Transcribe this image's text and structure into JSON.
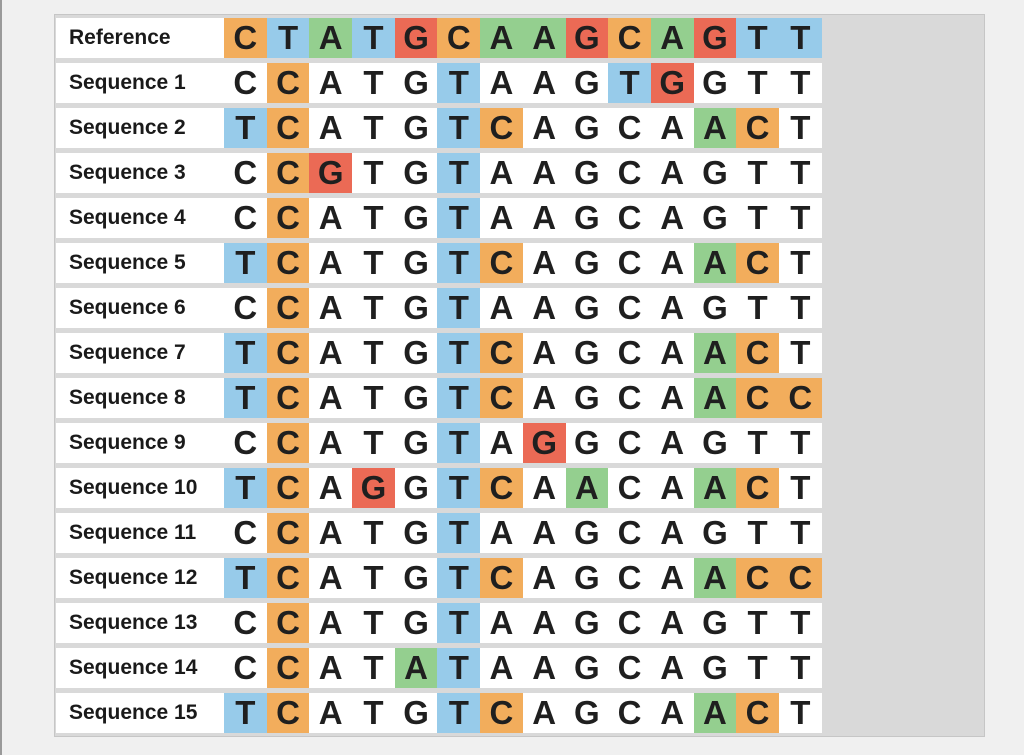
{
  "colors": {
    "A": "#94cf8f",
    "C": "#f2ad5c",
    "G": "#eb6a55",
    "T": "#97cbea"
  },
  "rows": [
    {
      "label": "Reference",
      "seq": "CTATGCAAGCAGTT",
      "hl": [
        1,
        1,
        1,
        1,
        1,
        1,
        1,
        1,
        1,
        1,
        1,
        1,
        1,
        1
      ]
    },
    {
      "label": "Sequence 1",
      "seq": "CCATGTAAGTGGTT",
      "hl": [
        0,
        1,
        0,
        0,
        0,
        1,
        0,
        0,
        0,
        1,
        1,
        0,
        0,
        0
      ]
    },
    {
      "label": "Sequence 2",
      "seq": "TCATGTCAGCAACT",
      "hl": [
        1,
        1,
        0,
        0,
        0,
        1,
        1,
        0,
        0,
        0,
        0,
        1,
        1,
        0
      ]
    },
    {
      "label": "Sequence 3",
      "seq": "CCGTGTAAGCAGTT",
      "hl": [
        0,
        1,
        1,
        0,
        0,
        1,
        0,
        0,
        0,
        0,
        0,
        0,
        0,
        0
      ]
    },
    {
      "label": "Sequence 4",
      "seq": "CCATGTAAGCAGTT",
      "hl": [
        0,
        1,
        0,
        0,
        0,
        1,
        0,
        0,
        0,
        0,
        0,
        0,
        0,
        0
      ]
    },
    {
      "label": "Sequence 5",
      "seq": "TCATGTCAGCAACT",
      "hl": [
        1,
        1,
        0,
        0,
        0,
        1,
        1,
        0,
        0,
        0,
        0,
        1,
        1,
        0
      ]
    },
    {
      "label": "Sequence 6",
      "seq": "CCATGTAAGCAGTT",
      "hl": [
        0,
        1,
        0,
        0,
        0,
        1,
        0,
        0,
        0,
        0,
        0,
        0,
        0,
        0
      ]
    },
    {
      "label": "Sequence 7",
      "seq": "TCATGTCAGCAACT",
      "hl": [
        1,
        1,
        0,
        0,
        0,
        1,
        1,
        0,
        0,
        0,
        0,
        1,
        1,
        0
      ]
    },
    {
      "label": "Sequence 8",
      "seq": "TCATGTCAGCAACC",
      "hl": [
        1,
        1,
        0,
        0,
        0,
        1,
        1,
        0,
        0,
        0,
        0,
        1,
        1,
        1
      ]
    },
    {
      "label": "Sequence 9",
      "seq": "CCATGTAGGCAGTT",
      "hl": [
        0,
        1,
        0,
        0,
        0,
        1,
        0,
        1,
        0,
        0,
        0,
        0,
        0,
        0
      ]
    },
    {
      "label": "Sequence 10",
      "seq": "TCAGGTCAACAACT",
      "hl": [
        1,
        1,
        0,
        1,
        0,
        1,
        1,
        0,
        1,
        0,
        0,
        1,
        1,
        0
      ]
    },
    {
      "label": "Sequence 11",
      "seq": "CCATGTAAGCAGTT",
      "hl": [
        0,
        1,
        0,
        0,
        0,
        1,
        0,
        0,
        0,
        0,
        0,
        0,
        0,
        0
      ]
    },
    {
      "label": "Sequence 12",
      "seq": "TCATGTCAGCAACC",
      "hl": [
        1,
        1,
        0,
        0,
        0,
        1,
        1,
        0,
        0,
        0,
        0,
        1,
        1,
        1
      ]
    },
    {
      "label": "Sequence 13",
      "seq": "CCATGTAAGCAGTT",
      "hl": [
        0,
        1,
        0,
        0,
        0,
        1,
        0,
        0,
        0,
        0,
        0,
        0,
        0,
        0
      ]
    },
    {
      "label": "Sequence 14",
      "seq": "CCATATAAGCAGTT",
      "hl": [
        0,
        1,
        0,
        0,
        1,
        1,
        0,
        0,
        0,
        0,
        0,
        0,
        0,
        0
      ]
    },
    {
      "label": "Sequence 15",
      "seq": "TCATGTCAGCAACT",
      "hl": [
        1,
        1,
        0,
        0,
        0,
        1,
        1,
        0,
        0,
        0,
        0,
        1,
        1,
        0
      ]
    }
  ]
}
